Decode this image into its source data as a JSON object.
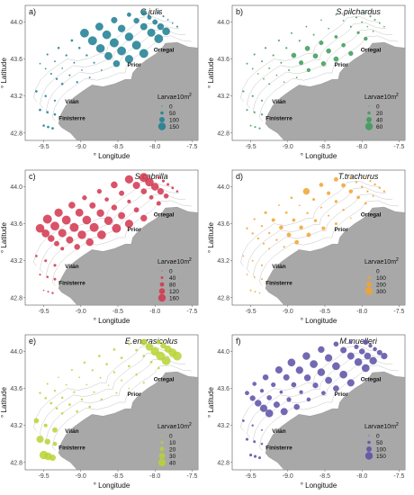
{
  "axes": {
    "x_title": "° Longitude",
    "y_title": "° Latitude",
    "x_ticks": [
      "-9.5",
      "-9.0",
      "-8.5",
      "-8.0",
      "-7.5"
    ],
    "y_ticks": [
      "44.0",
      "43.6",
      "43.2",
      "42.8"
    ]
  },
  "places": {
    "ortegal": "Ortegal",
    "prior": "Prior",
    "vilan": "Vilán",
    "finisterre": "Finisterre"
  },
  "legend_title": "Larvae10m",
  "legend_sup": "2",
  "panels": [
    {
      "letter": "a)",
      "species": "C.julis",
      "color": "#1b7e92",
      "legend": [
        "0",
        "50",
        "100",
        "150"
      ],
      "max": 150
    },
    {
      "letter": "b)",
      "species": "S.pilchardus",
      "color": "#3c9a58",
      "legend": [
        "0",
        "20",
        "40",
        "60"
      ],
      "max": 60
    },
    {
      "letter": "c)",
      "species": "S.cabrilla",
      "color": "#d2354e",
      "legend": [
        "0",
        "40",
        "80",
        "120",
        "160"
      ],
      "max": 160
    },
    {
      "letter": "d)",
      "species": "T.trachurus",
      "color": "#f0a531",
      "legend": [
        "0",
        "100",
        "200",
        "300"
      ],
      "max": 300
    },
    {
      "letter": "e)",
      "species": "E.encrasicolus",
      "color": "#b7d334",
      "legend": [
        "0",
        "10",
        "20",
        "30",
        "40"
      ],
      "max": 40
    },
    {
      "letter": "f)",
      "species": "M.muelleri",
      "color": "#5a4fa6",
      "legend": [
        "0",
        "50",
        "100",
        "150"
      ],
      "max": 150
    }
  ]
}
